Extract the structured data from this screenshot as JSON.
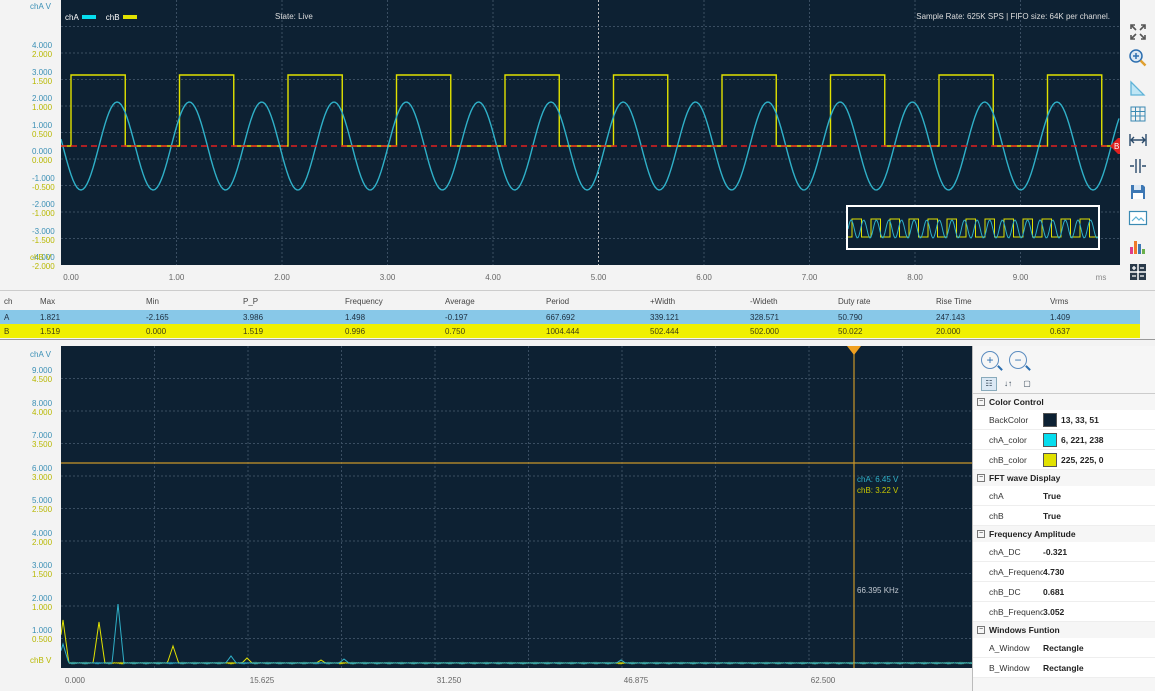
{
  "scope": {
    "legend": [
      {
        "label": "chA",
        "color": "#06ddee"
      },
      {
        "label": "chB",
        "color": "#e1e100"
      }
    ],
    "state_text": "State: Live",
    "rate_text": "Sample Rate: 625K SPS  | FIFO size: 64K per channel.",
    "y_top_label": "chA V",
    "y_bottom_label": "chB V",
    "y_labels": [
      {
        "a": "4.000",
        "b": "2.000"
      },
      {
        "a": "3.000",
        "b": "1.500"
      },
      {
        "a": "2.000",
        "b": "1.000"
      },
      {
        "a": "1.000",
        "b": "0.500"
      },
      {
        "a": "0.000",
        "b": "0.000"
      },
      {
        "a": "-1.000",
        "b": "-0.500"
      },
      {
        "a": "-2.000",
        "b": "-1.000"
      },
      {
        "a": "-3.000",
        "b": "-1.500"
      },
      {
        "a": "-4.000",
        "b": "-2.000"
      }
    ],
    "x_labels": [
      "0.00",
      "1.00",
      "2.00",
      "3.00",
      "4.00",
      "5.00",
      "6.00",
      "7.00",
      "8.00",
      "9.00"
    ],
    "x_unit": "ms",
    "trigger_marker": "B"
  },
  "toolbar": [
    {
      "name": "fit-all-icon"
    },
    {
      "name": "zoom-in-icon"
    },
    {
      "name": "trigger-slope-icon"
    },
    {
      "name": "grid-icon"
    },
    {
      "name": "horizontal-cursor-icon"
    },
    {
      "name": "vertical-cursor-icon"
    },
    {
      "name": "save-icon"
    },
    {
      "name": "screenshot-icon"
    },
    {
      "name": "fft-bars-icon"
    },
    {
      "name": "layout-icon"
    }
  ],
  "measurements": {
    "headers": [
      "ch",
      "Max",
      "Min",
      "P_P",
      "Frequency",
      "Average",
      "Period",
      "+Width",
      "-Wideth",
      "Duty rate",
      "Rise Time",
      "Vrms"
    ],
    "rows": [
      [
        "A",
        "1.821",
        "-2.165",
        "3.986",
        "1.498",
        "-0.197",
        "667.692",
        "339.121",
        "328.571",
        "50.790",
        "247.143",
        "1.409"
      ],
      [
        "B",
        "1.519",
        "0.000",
        "1.519",
        "0.996",
        "0.750",
        "1004.444",
        "502.444",
        "502.000",
        "50.022",
        "20.000",
        "0.637"
      ]
    ]
  },
  "fft": {
    "y_top_label": "chA V",
    "y_bottom_label": "chB V",
    "y_labels": [
      {
        "a": "9.000",
        "b": "4.500"
      },
      {
        "a": "8.000",
        "b": "4.000"
      },
      {
        "a": "7.000",
        "b": "3.500"
      },
      {
        "a": "6.000",
        "b": "3.000"
      },
      {
        "a": "5.000",
        "b": "2.500"
      },
      {
        "a": "4.000",
        "b": "2.000"
      },
      {
        "a": "3.000",
        "b": "1.500"
      },
      {
        "a": "2.000",
        "b": "1.000"
      },
      {
        "a": "1.000",
        "b": "0.500"
      }
    ],
    "x_labels": [
      "0.000",
      "15.625",
      "31.250",
      "46.875",
      "62.500"
    ],
    "cursor_cha": "chA: 6.45 V",
    "cursor_chb": "chB: 3.22 V",
    "cursor_freq": "66.395 KHz"
  },
  "props": {
    "categories": [
      {
        "title": "Color Control",
        "rows": [
          {
            "name": "BackColor",
            "value": "13, 33, 51",
            "swatch": "#0d2133"
          },
          {
            "name": "chA_color",
            "value": "6, 221, 238",
            "swatch": "#06ddee"
          },
          {
            "name": "chB_color",
            "value": "225, 225, 0",
            "swatch": "#e1e100"
          }
        ]
      },
      {
        "title": "FFT wave Display",
        "rows": [
          {
            "name": "chA",
            "value": "True"
          },
          {
            "name": "chB",
            "value": "True"
          }
        ]
      },
      {
        "title": "Frequency  Amplitude",
        "rows": [
          {
            "name": "chA_DC",
            "value": "-0.321"
          },
          {
            "name": "chA_Frequenc",
            "value": "4.730"
          },
          {
            "name": "chB_DC",
            "value": "0.681"
          },
          {
            "name": "chB_Frequenc",
            "value": "3.052"
          }
        ]
      },
      {
        "title": "Windows Funtion",
        "rows": [
          {
            "name": "A_Window",
            "value": "Rectangle"
          },
          {
            "name": "B_Window",
            "value": "Rectangle"
          }
        ]
      }
    ]
  }
}
